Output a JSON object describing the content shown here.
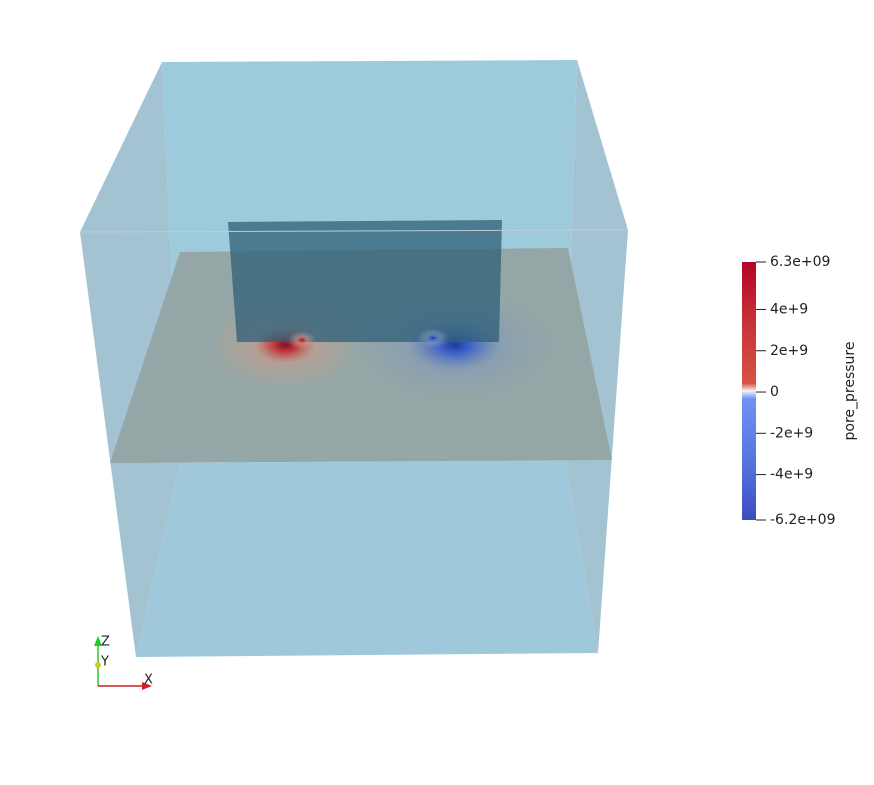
{
  "colorbar": {
    "title": "pore_pressure",
    "range": [
      -6200000000,
      6300000000
    ],
    "ticks": [
      {
        "value": 6300000000,
        "label": "6.3e+09"
      },
      {
        "value": 4000000000,
        "label": "4e+9"
      },
      {
        "value": 2000000000,
        "label": "2e+9"
      },
      0,
      {
        "value": -2000000000,
        "label": "-2e+9"
      },
      {
        "value": -4000000000,
        "label": "-4e+9"
      },
      {
        "value": -6200000000,
        "label": "-6.2e+09"
      }
    ]
  },
  "axes_triad": {
    "z": "Z",
    "y": "Y",
    "x": "X"
  }
}
